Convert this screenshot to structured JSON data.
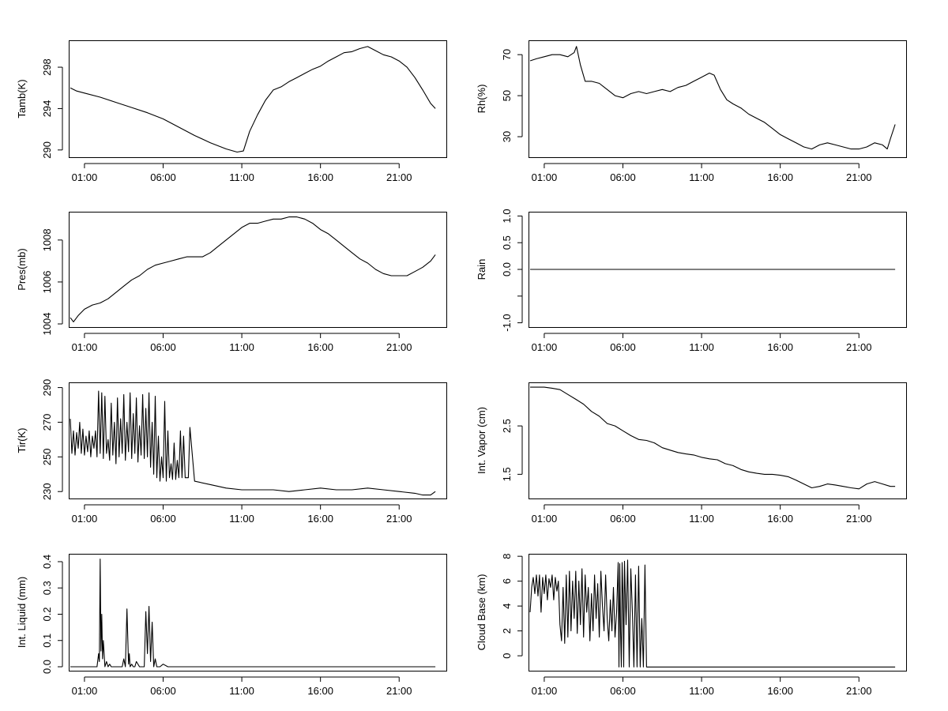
{
  "time_ticks": [
    "01:00",
    "06:00",
    "11:00",
    "16:00",
    "21:00"
  ],
  "chart_data": [
    {
      "type": "line",
      "ylabel": "Tamb(K)",
      "xticks": [
        "01:00",
        "06:00",
        "11:00",
        "16:00",
        "21:00"
      ],
      "yticks": [
        290,
        294,
        298
      ],
      "xlim": [
        0,
        24
      ],
      "ylim": [
        289.3,
        300.6
      ],
      "series": [
        {
          "x": [
            0.1,
            0.5,
            1,
            2,
            3,
            4,
            5,
            6,
            7,
            8,
            9,
            10,
            10.7,
            11.1,
            11.5,
            12,
            12.5,
            13,
            13.5,
            14,
            14.5,
            15,
            15.5,
            16,
            16.5,
            17,
            17.5,
            18,
            18.5,
            19,
            19.5,
            20,
            20.5,
            21,
            21.5,
            22,
            22.5,
            23,
            23.3
          ],
          "y": [
            296.0,
            295.7,
            295.5,
            295.1,
            294.6,
            294.1,
            293.6,
            293.0,
            292.2,
            291.4,
            290.7,
            290.1,
            289.8,
            289.9,
            291.8,
            293.4,
            294.8,
            295.8,
            296.1,
            296.6,
            297.0,
            297.4,
            297.8,
            298.1,
            298.6,
            299.0,
            299.4,
            299.5,
            299.8,
            300.0,
            299.6,
            299.2,
            299.0,
            298.6,
            298.0,
            297.0,
            295.8,
            294.5,
            294.0
          ]
        }
      ]
    },
    {
      "type": "line",
      "ylabel": "Rh(%)",
      "xticks": [
        "01:00",
        "06:00",
        "11:00",
        "16:00",
        "21:00"
      ],
      "yticks": [
        30,
        50,
        70
      ],
      "xlim": [
        0,
        24
      ],
      "ylim": [
        20,
        77
      ],
      "series": [
        {
          "x": [
            0.1,
            0.5,
            1,
            1.5,
            2,
            2.5,
            2.9,
            3.05,
            3.3,
            3.6,
            4,
            4.5,
            5,
            5.5,
            6,
            6.5,
            7,
            7.5,
            8,
            8.5,
            9,
            9.5,
            10,
            10.5,
            11,
            11.5,
            11.8,
            12.2,
            12.6,
            13,
            13.5,
            14,
            14.5,
            15,
            15.5,
            16,
            16.5,
            17,
            17.5,
            18,
            18.5,
            19,
            19.5,
            20,
            20.5,
            21,
            21.5,
            22,
            22.5,
            22.8,
            23,
            23.3
          ],
          "y": [
            67,
            68,
            69,
            70,
            70,
            69,
            71,
            74,
            65,
            57,
            57,
            56,
            53,
            50,
            49,
            51,
            52,
            51,
            52,
            53,
            52,
            54,
            55,
            57,
            59,
            61,
            60,
            53,
            48,
            46,
            44,
            41,
            39,
            37,
            34,
            31,
            29,
            27,
            25,
            24,
            26,
            27,
            26,
            25,
            24,
            24,
            25,
            27,
            26,
            24,
            29,
            36
          ]
        }
      ]
    },
    {
      "type": "line",
      "ylabel": "Pres(mb)",
      "xticks": [
        "01:00",
        "06:00",
        "11:00",
        "16:00",
        "21:00"
      ],
      "yticks": [
        1004,
        1006,
        1008
      ],
      "xlim": [
        0,
        24
      ],
      "ylim": [
        1003.85,
        1009.35
      ],
      "series": [
        {
          "x": [
            0.1,
            0.3,
            0.6,
            1,
            1.5,
            2,
            2.5,
            3,
            3.5,
            4,
            4.5,
            5,
            5.5,
            6,
            6.5,
            7,
            7.5,
            8,
            8.5,
            9,
            9.5,
            10,
            10.5,
            11,
            11.5,
            12,
            12.5,
            13,
            13.5,
            14,
            14.5,
            15,
            15.5,
            16,
            16.5,
            17,
            17.5,
            18,
            18.5,
            19,
            19.5,
            20,
            20.5,
            21,
            21.5,
            22,
            22.5,
            23,
            23.3
          ],
          "y": [
            1004.3,
            1004.1,
            1004.4,
            1004.7,
            1004.9,
            1005.0,
            1005.2,
            1005.5,
            1005.8,
            1006.1,
            1006.3,
            1006.6,
            1006.8,
            1006.9,
            1007.0,
            1007.1,
            1007.2,
            1007.2,
            1007.2,
            1007.4,
            1007.7,
            1008.0,
            1008.3,
            1008.6,
            1008.8,
            1008.8,
            1008.9,
            1009.0,
            1009.0,
            1009.1,
            1009.1,
            1009.0,
            1008.8,
            1008.5,
            1008.3,
            1008.0,
            1007.7,
            1007.4,
            1007.1,
            1006.9,
            1006.6,
            1006.4,
            1006.3,
            1006.3,
            1006.3,
            1006.5,
            1006.7,
            1007.0,
            1007.3
          ]
        }
      ]
    },
    {
      "type": "line",
      "ylabel": "Rain",
      "xticks": [
        "01:00",
        "06:00",
        "11:00",
        "16:00",
        "21:00"
      ],
      "yticks": [
        -1.0,
        -0.5,
        0.0,
        0.5,
        1.0
      ],
      "ytick_labels": [
        "-1.0",
        "",
        "0.0",
        "0.5",
        "1.0"
      ],
      "xlim": [
        0,
        24
      ],
      "ylim": [
        -1.08,
        1.08
      ],
      "series": [
        {
          "x": [
            0.1,
            23.3
          ],
          "y": [
            0,
            0
          ]
        }
      ]
    },
    {
      "type": "line",
      "ylabel": "Tir(K)",
      "xticks": [
        "01:00",
        "06:00",
        "11:00",
        "16:00",
        "21:00"
      ],
      "yticks": [
        230,
        250,
        270,
        290
      ],
      "xlim": [
        0,
        24
      ],
      "ylim": [
        226,
        293
      ],
      "series": [
        {
          "x": [
            0.1,
            0.2,
            0.3,
            0.4,
            0.5,
            0.6,
            0.7,
            0.8,
            0.9,
            1.0,
            1.1,
            1.2,
            1.3,
            1.4,
            1.5,
            1.6,
            1.7,
            1.8,
            1.9,
            2.0,
            2.1,
            2.2,
            2.3,
            2.4,
            2.5,
            2.6,
            2.7,
            2.8,
            2.9,
            3.0,
            3.1,
            3.2,
            3.3,
            3.4,
            3.5,
            3.6,
            3.7,
            3.8,
            3.9,
            4.0,
            4.1,
            4.2,
            4.3,
            4.4,
            4.5,
            4.6,
            4.7,
            4.8,
            4.9,
            5.0,
            5.1,
            5.2,
            5.3,
            5.4,
            5.5,
            5.6,
            5.7,
            5.8,
            5.9,
            6.0,
            6.1,
            6.2,
            6.3,
            6.4,
            6.5,
            6.6,
            6.7,
            6.8,
            6.9,
            7.0,
            7.1,
            7.2,
            7.3,
            7.4,
            7.5,
            7.6,
            7.7,
            8,
            9,
            10,
            11,
            12,
            13,
            14,
            15,
            16,
            17,
            18,
            19,
            20,
            21,
            22,
            22.5,
            23,
            23.3
          ],
          "y": [
            272,
            252,
            265,
            251,
            264,
            255,
            270,
            252,
            266,
            251,
            262,
            253,
            265,
            250,
            262,
            255,
            265,
            250,
            288,
            252,
            287,
            249,
            285,
            252,
            260,
            248,
            281,
            251,
            270,
            246,
            284,
            250,
            272,
            252,
            286,
            248,
            270,
            253,
            287,
            249,
            275,
            252,
            284,
            247,
            268,
            251,
            286,
            249,
            278,
            250,
            287,
            244,
            270,
            240,
            285,
            238,
            262,
            236,
            250,
            238,
            282,
            236,
            265,
            238,
            246,
            237,
            258,
            237,
            248,
            238,
            265,
            238,
            262,
            238,
            238,
            238,
            267,
            236,
            234,
            232,
            231,
            231,
            231,
            230,
            231,
            232,
            231,
            231,
            232,
            231,
            230,
            229,
            228,
            228,
            230
          ]
        }
      ]
    },
    {
      "type": "line",
      "ylabel": "Int. Vapor (cm)",
      "xticks": [
        "01:00",
        "06:00",
        "11:00",
        "16:00",
        "21:00"
      ],
      "yticks": [
        1.5,
        2.5
      ],
      "xlim": [
        0,
        24
      ],
      "ylim": [
        1.0,
        3.4
      ],
      "series": [
        {
          "x": [
            0.1,
            0.5,
            1,
            1.5,
            2,
            2.5,
            3,
            3.5,
            4,
            4.5,
            5,
            5.5,
            6,
            6.5,
            7,
            7.5,
            8,
            8.5,
            9,
            9.5,
            10,
            10.5,
            11,
            11.5,
            12,
            12.5,
            13,
            13.5,
            14,
            14.5,
            15,
            15.5,
            16,
            16.5,
            17,
            17.5,
            18,
            18.5,
            19,
            19.5,
            20,
            20.5,
            21,
            21.5,
            22,
            22.5,
            23,
            23.3
          ],
          "y": [
            3.3,
            3.3,
            3.3,
            3.28,
            3.25,
            3.15,
            3.05,
            2.95,
            2.8,
            2.7,
            2.55,
            2.5,
            2.4,
            2.3,
            2.22,
            2.2,
            2.15,
            2.05,
            2.0,
            1.95,
            1.92,
            1.9,
            1.85,
            1.82,
            1.8,
            1.72,
            1.68,
            1.6,
            1.55,
            1.52,
            1.5,
            1.5,
            1.48,
            1.45,
            1.38,
            1.3,
            1.22,
            1.25,
            1.3,
            1.28,
            1.25,
            1.22,
            1.2,
            1.3,
            1.35,
            1.3,
            1.25,
            1.25
          ]
        }
      ]
    },
    {
      "type": "line",
      "ylabel": "Int. Liquid (mm)",
      "xticks": [
        "01:00",
        "06:00",
        "11:00",
        "16:00",
        "21:00"
      ],
      "yticks": [
        0.0,
        0.1,
        0.2,
        0.3,
        0.4
      ],
      "ytick_labels": [
        "0.0",
        "0.1",
        "0.2",
        "0.3",
        "0.4"
      ],
      "xlim": [
        0,
        24
      ],
      "ylim": [
        -0.015,
        0.43
      ],
      "series": [
        {
          "x": [
            0.1,
            1.8,
            1.9,
            1.95,
            2.0,
            2.05,
            2.1,
            2.15,
            2.2,
            2.3,
            2.4,
            2.5,
            2.6,
            2.7,
            3.0,
            3.4,
            3.5,
            3.6,
            3.7,
            3.8,
            3.85,
            3.9,
            4.0,
            4.1,
            4.2,
            4.3,
            4.5,
            4.8,
            4.9,
            5.0,
            5.1,
            5.2,
            5.3,
            5.4,
            5.5,
            5.6,
            5.8,
            6.0,
            6.3,
            23.3
          ],
          "y": [
            0,
            0,
            0.05,
            0.02,
            0.41,
            0.06,
            0.2,
            0.03,
            0.1,
            0.0,
            0.02,
            0.0,
            0.01,
            0.0,
            0.0,
            0.0,
            0.03,
            0.0,
            0.22,
            0.01,
            0.05,
            0.0,
            0.01,
            0.0,
            0.0,
            0.02,
            0.0,
            0.0,
            0.21,
            0.05,
            0.23,
            0.02,
            0.17,
            0.0,
            0.03,
            0.0,
            0.0,
            0.01,
            0.0,
            0.0
          ]
        }
      ]
    },
    {
      "type": "line",
      "ylabel": "Cloud Base (km)",
      "xticks": [
        "01:00",
        "06:00",
        "11:00",
        "16:00",
        "21:00"
      ],
      "yticks": [
        0,
        2,
        4,
        6,
        8
      ],
      "xlim": [
        0,
        24
      ],
      "ylim": [
        -1.2,
        8.2
      ],
      "series": [
        {
          "x": [
            0.1,
            0.2,
            0.3,
            0.4,
            0.5,
            0.6,
            0.7,
            0.8,
            0.9,
            1.0,
            1.1,
            1.2,
            1.3,
            1.4,
            1.5,
            1.6,
            1.7,
            1.8,
            1.9,
            2.0,
            2.1,
            2.2,
            2.3,
            2.4,
            2.5,
            2.6,
            2.7,
            2.8,
            2.9,
            3.0,
            3.1,
            3.2,
            3.3,
            3.4,
            3.5,
            3.6,
            3.7,
            3.8,
            3.9,
            4.0,
            4.1,
            4.2,
            4.3,
            4.4,
            4.5,
            4.6,
            4.7,
            4.8,
            4.9,
            5.0,
            5.1,
            5.2,
            5.3,
            5.4,
            5.5,
            5.6,
            5.7,
            5.75,
            5.8,
            5.85,
            5.9,
            5.95,
            6.0,
            6.05,
            6.1,
            6.2,
            6.3,
            6.4,
            6.5,
            6.6,
            6.7,
            6.8,
            6.9,
            7.0,
            7.1,
            7.2,
            7.3,
            7.4,
            7.5,
            7.6,
            7.7,
            7.8,
            23.3
          ],
          "y": [
            3.5,
            5.5,
            6.3,
            5.0,
            6.5,
            4.8,
            6.5,
            3.5,
            6.3,
            5.0,
            6.5,
            4.5,
            6.2,
            5.5,
            6.5,
            4.5,
            6.3,
            5.2,
            6.0,
            2.5,
            1.2,
            5.5,
            1.0,
            6.5,
            1.5,
            6.8,
            2.0,
            6.0,
            3.0,
            6.8,
            1.8,
            6.0,
            2.5,
            7.0,
            1.5,
            6.5,
            3.5,
            5.5,
            1.2,
            5.0,
            2.0,
            6.5,
            3.0,
            5.8,
            1.5,
            6.8,
            4.0,
            2.0,
            6.5,
            3.0,
            1.2,
            4.5,
            2.0,
            5.5,
            1.5,
            3.5,
            7.5,
            -0.9,
            7.4,
            2.0,
            -0.9,
            7.5,
            5.0,
            -0.9,
            7.6,
            2.5,
            7.7,
            -0.9,
            7.0,
            3.5,
            -0.9,
            6.5,
            -0.9,
            7.2,
            -0.9,
            3.0,
            -0.9,
            7.3,
            -0.9,
            -0.9,
            -0.9,
            -0.9,
            -0.9
          ]
        }
      ]
    }
  ]
}
